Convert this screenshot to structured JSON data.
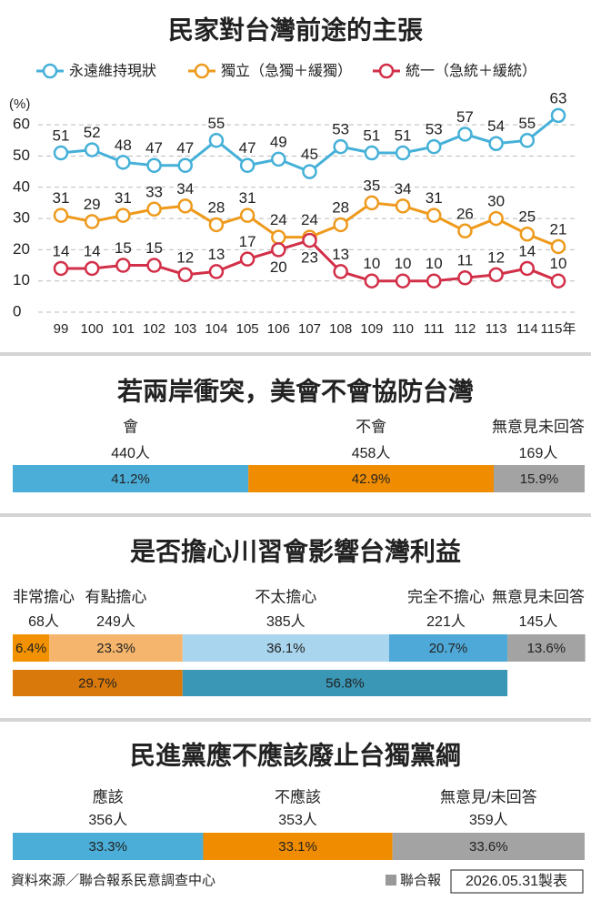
{
  "chart_data": [
    {
      "type": "line",
      "title": "民家對台灣前途的主張",
      "y_label": "(%)",
      "categories": [
        "99",
        "100",
        "101",
        "102",
        "103",
        "104",
        "105",
        "106",
        "107",
        "108",
        "109",
        "110",
        "111",
        "112",
        "113",
        "114",
        "115年"
      ],
      "series": [
        {
          "name": "永遠維持現狀",
          "color": "#45b0d8",
          "values": [
            51,
            52,
            48,
            47,
            47,
            55,
            47,
            49,
            45,
            53,
            51,
            51,
            53,
            57,
            54,
            55,
            63
          ]
        },
        {
          "name": "獨立（急獨＋緩獨）",
          "color": "#ee9a1c",
          "values": [
            31,
            29,
            31,
            33,
            34,
            28,
            31,
            24,
            24,
            28,
            35,
            34,
            31,
            26,
            30,
            25,
            21
          ]
        },
        {
          "name": "統一（急統＋緩統）",
          "color": "#d22f48",
          "values": [
            14,
            14,
            15,
            15,
            12,
            13,
            17,
            20,
            23,
            13,
            10,
            10,
            10,
            11,
            12,
            14,
            10
          ]
        }
      ],
      "ylim": [
        0,
        65
      ],
      "yticks": [
        0,
        10,
        20,
        30,
        40,
        50,
        60
      ],
      "grid": true
    },
    {
      "type": "stacked_bar",
      "title": "若兩岸衝突，美會不會協防台灣",
      "categories": [
        "會",
        "不會",
        "無意見未回答"
      ],
      "counts": [
        "440人",
        "458人",
        "169人"
      ],
      "values": [
        41.2,
        42.9,
        15.9
      ],
      "value_labels": [
        "41.2%",
        "42.9%",
        "15.9%"
      ],
      "colors": [
        "#4aaed8",
        "#f08c00",
        "#a3a3a3"
      ],
      "xlim": [
        0,
        100
      ]
    },
    {
      "type": "stacked_bar",
      "title": "是否擔心川習會影響台灣利益",
      "categories": [
        "非常擔心",
        "有點擔心",
        "不太擔心",
        "完全不擔心",
        "無意見未回答"
      ],
      "counts": [
        "68人",
        "249人",
        "385人",
        "221人",
        "145人"
      ],
      "values": [
        6.4,
        23.3,
        36.1,
        20.7,
        13.6
      ],
      "value_labels": [
        "6.4%",
        "23.3%",
        "36.1%",
        "20.7%",
        "13.6%"
      ],
      "colors": [
        "#f39200",
        "#f6b56c",
        "#a9d5ee",
        "#4fa9d8",
        "#a3a3a3"
      ],
      "xlim": [
        0,
        100
      ],
      "subtotals": {
        "values": [
          29.7,
          56.8
        ],
        "value_labels": [
          "29.7%",
          "56.8%"
        ],
        "colors": [
          "#d9780b",
          "#3a97b6"
        ]
      }
    },
    {
      "type": "stacked_bar",
      "title": "民進黨應不應該廢止台獨黨綱",
      "categories": [
        "應該",
        "不應該",
        "無意見/未回答"
      ],
      "counts": [
        "356人",
        "353人",
        "359人"
      ],
      "values": [
        33.3,
        33.1,
        33.6
      ],
      "value_labels": [
        "33.3%",
        "33.1%",
        "33.6%"
      ],
      "colors": [
        "#4aaed8",
        "#f08c00",
        "#a3a3a3"
      ],
      "xlim": [
        0,
        100
      ]
    }
  ],
  "footer": {
    "source": "資料來源／聯合報系民意調查中心",
    "publisher": "聯合報",
    "date": "2026.05.31製表"
  }
}
